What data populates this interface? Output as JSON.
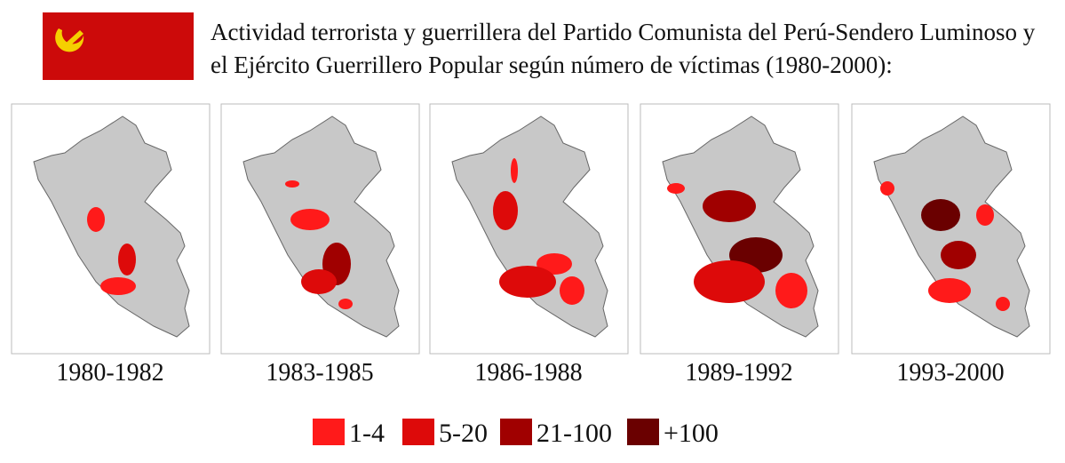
{
  "title_lines": [
    "Actividad terrorista y guerrillera del Partido Comunista del Perú-Sendero Luminoso y",
    "el Ejército Guerrillero Popular según número de víctimas (1980-2000):"
  ],
  "panels": [
    "1980-1982",
    "1983-1985",
    "1986-1988",
    "1989-1992",
    "1993-2000"
  ],
  "legend": [
    "1-4",
    "5-20",
    "21-100",
    "+100"
  ]
}
